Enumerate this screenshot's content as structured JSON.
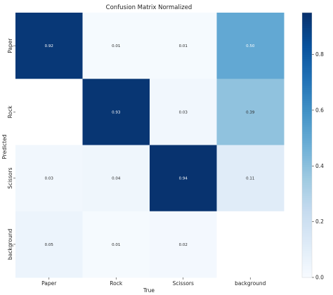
{
  "chart_data": {
    "type": "heatmap",
    "title": "Confusion Matrix Normalized",
    "xlabel": "True",
    "ylabel": "Predicted",
    "x_categories": [
      "Paper",
      "Rock",
      "Scissors",
      "background"
    ],
    "y_categories": [
      "Paper",
      "Rock",
      "Scissors",
      "background"
    ],
    "values": [
      [
        0.92,
        0.01,
        0.01,
        0.5
      ],
      [
        null,
        0.93,
        0.03,
        0.39
      ],
      [
        0.03,
        0.04,
        0.94,
        0.11
      ],
      [
        0.05,
        0.01,
        0.02,
        null
      ]
    ],
    "value_labels": [
      [
        "0.92",
        "0.01",
        "0.01",
        "0.50"
      ],
      [
        "",
        "0.93",
        "0.03",
        "0.39"
      ],
      [
        "0.03",
        "0.04",
        "0.94",
        "0.11"
      ],
      [
        "0.05",
        "0.01",
        "0.02",
        ""
      ]
    ],
    "colorbar": {
      "range": [
        0,
        0.95
      ],
      "ticks": [
        0.0,
        0.2,
        0.4,
        0.6,
        0.8
      ],
      "tick_labels": [
        "0.0",
        "0.2",
        "0.4",
        "0.6",
        "0.8"
      ]
    },
    "colormap": "Blues",
    "colors": {
      "low": "#f7fbff",
      "high": "#08306b"
    },
    "grid": false,
    "legend": "colorbar-right"
  }
}
